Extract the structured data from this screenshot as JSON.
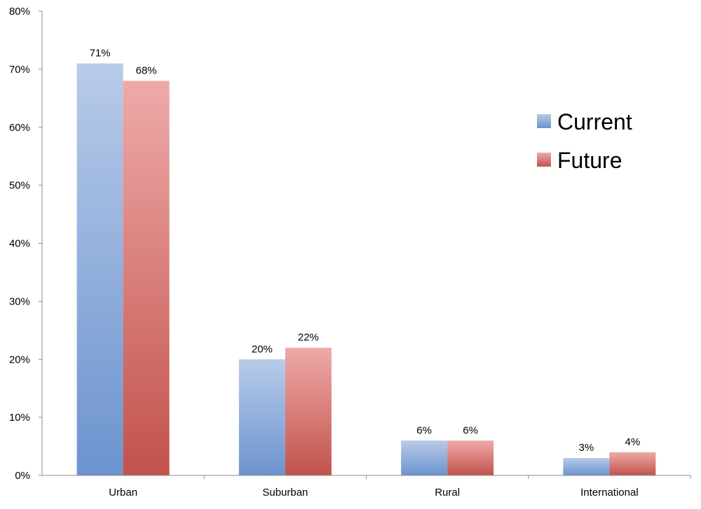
{
  "chart_data": {
    "type": "bar",
    "categories": [
      "Urban",
      "Suburban",
      "Rural",
      "International"
    ],
    "series": [
      {
        "name": "Current",
        "values": [
          71,
          20,
          6,
          3
        ],
        "labels": [
          "71%",
          "20%",
          "6%",
          "3%"
        ],
        "color_top": "#b8cbe9",
        "color_bottom": "#6c93cf"
      },
      {
        "name": "Future",
        "values": [
          68,
          22,
          6,
          4
        ],
        "labels": [
          "68%",
          "22%",
          "6%",
          "4%"
        ],
        "color_top": "#eeaaa8",
        "color_bottom": "#c2524c"
      }
    ],
    "ylim": [
      0,
      80
    ],
    "yticks": [
      0,
      10,
      20,
      30,
      40,
      50,
      60,
      70,
      80
    ],
    "ytick_labels": [
      "0%",
      "10%",
      "20%",
      "30%",
      "40%",
      "50%",
      "60%",
      "70%",
      "80%"
    ],
    "grid": false,
    "legend_position": "right",
    "title": "",
    "xlabel": "",
    "ylabel": ""
  }
}
